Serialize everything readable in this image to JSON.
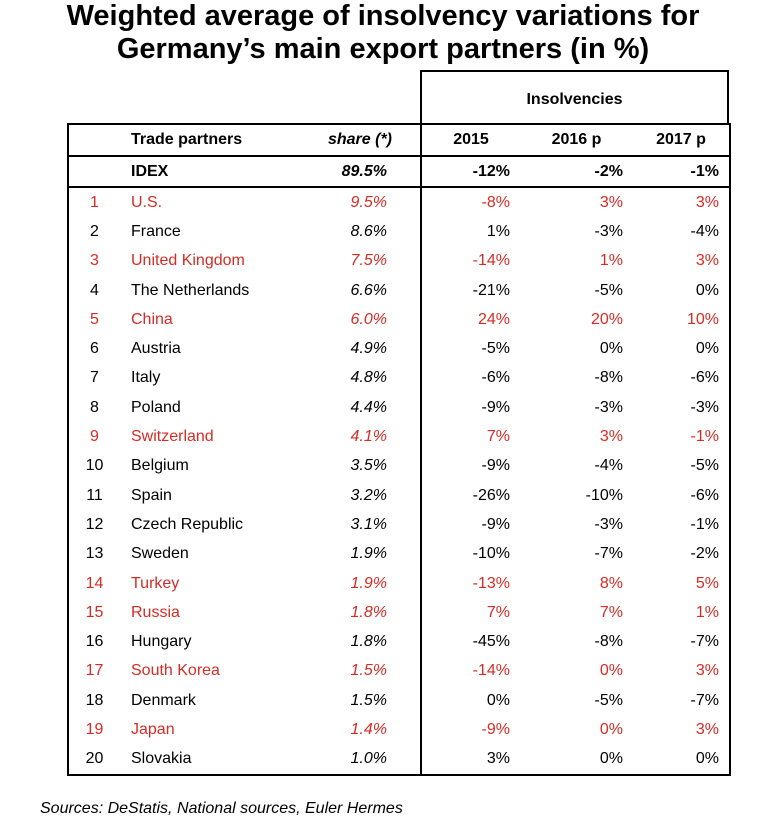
{
  "title": {
    "line1": "Weighted average of insolvency variations for",
    "line2": "Germany’s main export partners (in %)"
  },
  "chart_data": {
    "type": "table",
    "title": "Weighted average of insolvency variations for Germany’s main export partners (in %)",
    "group_header": "Insolvencies",
    "columns": {
      "rank": "",
      "name": "Trade partners",
      "share": "share (*)",
      "y2015": "2015",
      "y2016": "2016 p",
      "y2017": "2017 p"
    },
    "index_row": {
      "name": "IDEX",
      "share": "89.5%",
      "y2015": "-12%",
      "y2016": "-2%",
      "y2017": "-1%"
    },
    "rows": [
      {
        "rank": "1",
        "name": "U.S.",
        "share": "9.5%",
        "y2015": "-8%",
        "y2016": "3%",
        "y2017": "3%",
        "highlight": true
      },
      {
        "rank": "2",
        "name": "France",
        "share": "8.6%",
        "y2015": "1%",
        "y2016": "-3%",
        "y2017": "-4%",
        "highlight": false
      },
      {
        "rank": "3",
        "name": "United Kingdom",
        "share": "7.5%",
        "y2015": "-14%",
        "y2016": "1%",
        "y2017": "3%",
        "highlight": true
      },
      {
        "rank": "4",
        "name": "The Netherlands",
        "share": "6.6%",
        "y2015": "-21%",
        "y2016": "-5%",
        "y2017": "0%",
        "highlight": false
      },
      {
        "rank": "5",
        "name": "China",
        "share": "6.0%",
        "y2015": "24%",
        "y2016": "20%",
        "y2017": "10%",
        "highlight": true
      },
      {
        "rank": "6",
        "name": "Austria",
        "share": "4.9%",
        "y2015": "-5%",
        "y2016": "0%",
        "y2017": "0%",
        "highlight": false
      },
      {
        "rank": "7",
        "name": "Italy",
        "share": "4.8%",
        "y2015": "-6%",
        "y2016": "-8%",
        "y2017": "-6%",
        "highlight": false
      },
      {
        "rank": "8",
        "name": "Poland",
        "share": "4.4%",
        "y2015": "-9%",
        "y2016": "-3%",
        "y2017": "-3%",
        "highlight": false
      },
      {
        "rank": "9",
        "name": "Switzerland",
        "share": "4.1%",
        "y2015": "7%",
        "y2016": "3%",
        "y2017": "-1%",
        "highlight": true
      },
      {
        "rank": "10",
        "name": "Belgium",
        "share": "3.5%",
        "y2015": "-9%",
        "y2016": "-4%",
        "y2017": "-5%",
        "highlight": false
      },
      {
        "rank": "11",
        "name": "Spain",
        "share": "3.2%",
        "y2015": "-26%",
        "y2016": "-10%",
        "y2017": "-6%",
        "highlight": false
      },
      {
        "rank": "12",
        "name": "Czech Republic",
        "share": "3.1%",
        "y2015": "-9%",
        "y2016": "-3%",
        "y2017": "-1%",
        "highlight": false
      },
      {
        "rank": "13",
        "name": "Sweden",
        "share": "1.9%",
        "y2015": "-10%",
        "y2016": "-7%",
        "y2017": "-2%",
        "highlight": false
      },
      {
        "rank": "14",
        "name": "Turkey",
        "share": "1.9%",
        "y2015": "-13%",
        "y2016": "8%",
        "y2017": "5%",
        "highlight": true
      },
      {
        "rank": "15",
        "name": "Russia",
        "share": "1.8%",
        "y2015": "7%",
        "y2016": "7%",
        "y2017": "1%",
        "highlight": true
      },
      {
        "rank": "16",
        "name": "Hungary",
        "share": "1.8%",
        "y2015": "-45%",
        "y2016": "-8%",
        "y2017": "-7%",
        "highlight": false
      },
      {
        "rank": "17",
        "name": "South Korea",
        "share": "1.5%",
        "y2015": "-14%",
        "y2016": "0%",
        "y2017": "3%",
        "highlight": true
      },
      {
        "rank": "18",
        "name": "Denmark",
        "share": "1.5%",
        "y2015": "0%",
        "y2016": "-5%",
        "y2017": "-7%",
        "highlight": false
      },
      {
        "rank": "19",
        "name": "Japan",
        "share": "1.4%",
        "y2015": "-9%",
        "y2016": "0%",
        "y2017": "3%",
        "highlight": true
      },
      {
        "rank": "20",
        "name": "Slovakia",
        "share": "1.0%",
        "y2015": "3%",
        "y2016": "0%",
        "y2017": "0%",
        "highlight": false
      }
    ],
    "colors": {
      "highlight": "#d92b25",
      "text": "#000000"
    }
  },
  "sources": "Sources: DeStatis, National sources, Euler Hermes"
}
